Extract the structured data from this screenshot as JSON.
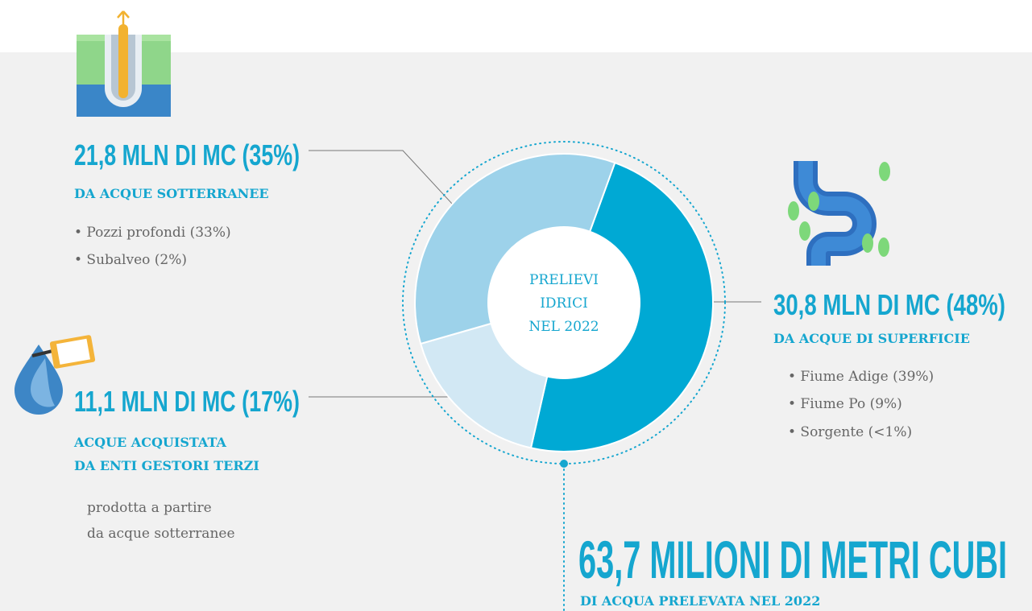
{
  "chart_data": {
    "type": "donut",
    "center_label": [
      "PRELIEVI",
      "IDRICI",
      "NEL 2022"
    ],
    "values": [
      48,
      17,
      35
    ],
    "colors": [
      "#00a9d4",
      "#d2e8f4",
      "#9dd2ea"
    ]
  },
  "callouts": [
    {
      "heading": "30,8 MLN DI MC (48%)",
      "subheading": [
        "DA ACQUE DI SUPERFICIE"
      ],
      "items": [
        "• Fiume Adige (39%)",
        "• Fiume Po (9%)",
        "• Sorgente (<1%)"
      ]
    },
    {
      "heading": "11,1 MLN DI MC (17%)",
      "subheading": [
        "ACQUE ACQUISTATA",
        "DA ENTI GESTORI TERZI"
      ],
      "items": [
        "prodotta a partire",
        "da acque sotterranee"
      ]
    },
    {
      "heading": "21,8 MLN DI MC (35%)",
      "subheading": [
        "DA ACQUE SOTTERRANEE"
      ],
      "items": [
        "• Pozzi profondi (33%)",
        "• Subalveo (2%)"
      ]
    }
  ],
  "total": {
    "heading": "63,7 MILIONI DI METRI CUBI",
    "subheading": "DI ACQUA PRELEVATA NEL 2022"
  }
}
